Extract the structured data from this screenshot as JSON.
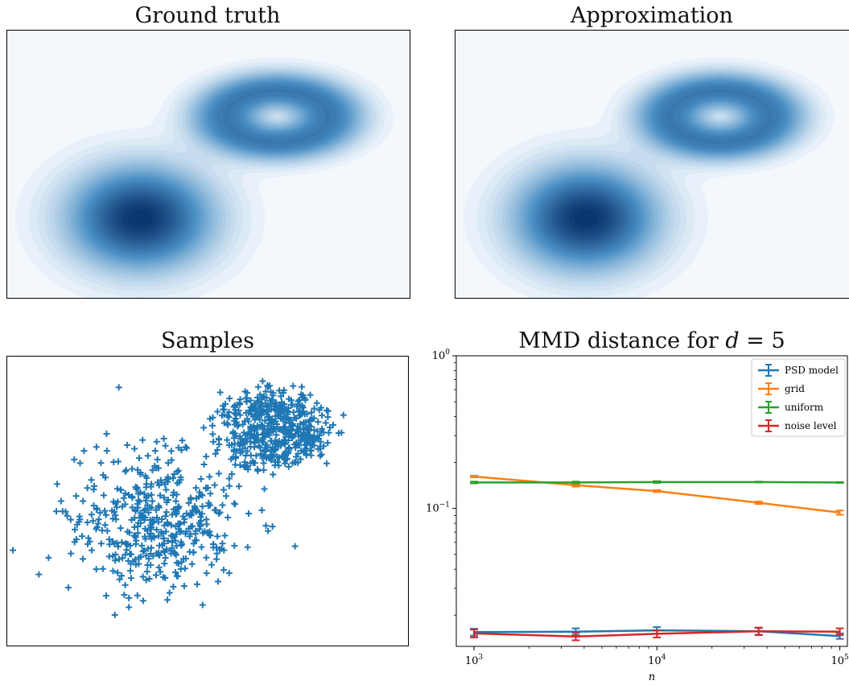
{
  "panels": {
    "ground_truth_title": "Ground truth",
    "approximation_title": "Approximation",
    "samples_title": "Samples",
    "mmd_title_prefix": "MMD distance for ",
    "mmd_title_var": "d",
    "mmd_title_eq": " = 5"
  },
  "colors": {
    "density_dark": "#08306b",
    "density_mid": "#4a8fc4",
    "density_light": "#f3f8fd",
    "samples": "#1f77b4",
    "psd_model": "#1f77b4",
    "grid": "#ff7f0e",
    "uniform": "#2ca02c",
    "noise_level": "#d62728"
  },
  "chart_data": [
    {
      "type": "heatmap",
      "title": "Ground truth",
      "description_components": "two-component Gaussian mixture density",
      "components": [
        {
          "center": [
            0.33,
            0.3
          ],
          "spread": [
            0.13,
            0.14
          ],
          "weight": 1.0
        },
        {
          "center": [
            0.67,
            0.68
          ],
          "spread": [
            0.17,
            0.13
          ],
          "weight": 0.65,
          "ring": true
        }
      ]
    },
    {
      "type": "heatmap",
      "title": "Approximation",
      "components": [
        {
          "center": [
            0.33,
            0.3
          ],
          "spread": [
            0.13,
            0.14
          ],
          "weight": 1.0
        },
        {
          "center": [
            0.67,
            0.68
          ],
          "spread": [
            0.17,
            0.13
          ],
          "weight": 0.65,
          "ring": true
        }
      ]
    },
    {
      "type": "scatter",
      "title": "Samples",
      "marker": "+",
      "n_points": 1000
    },
    {
      "type": "line",
      "title": "MMD distance for d = 5",
      "xlabel": "n",
      "ylabel": "",
      "xscale": "log",
      "yscale": "log",
      "xlim": [
        800,
        110000
      ],
      "ylim": [
        0.0125,
        1.0
      ],
      "xticks": [
        {
          "value": 1000,
          "base": "10",
          "exp": "3"
        },
        {
          "value": 10000,
          "base": "10",
          "exp": "4"
        },
        {
          "value": 100000,
          "base": "10",
          "exp": "5"
        }
      ],
      "yticks": [
        {
          "value": 1.0,
          "base": "10",
          "exp": "0"
        },
        {
          "value": 0.1,
          "base": "10",
          "exp": "−1"
        }
      ],
      "x": [
        1000,
        3600,
        10000,
        36000,
        100000
      ],
      "legend_position": "top-right",
      "series": [
        {
          "name": "PSD model",
          "color": "#1f77b4",
          "values": [
            0.0155,
            0.0156,
            0.0159,
            0.0157,
            0.0146
          ],
          "err": [
            0.0008,
            0.0008,
            0.0008,
            0.0008,
            0.0006
          ]
        },
        {
          "name": "grid",
          "color": "#ff7f0e",
          "values": [
            0.162,
            0.142,
            0.13,
            0.109,
            0.094
          ],
          "err": [
            0.002,
            0.003,
            0.002,
            0.002,
            0.003
          ]
        },
        {
          "name": "uniform",
          "color": "#2ca02c",
          "values": [
            0.148,
            0.148,
            0.149,
            0.149,
            0.148
          ],
          "err": [
            0.002,
            0.002,
            0.002,
            0.001,
            0.001
          ]
        },
        {
          "name": "noise level",
          "color": "#d62728",
          "values": [
            0.0152,
            0.0145,
            0.0151,
            0.0157,
            0.0156
          ],
          "err": [
            0.0009,
            0.0008,
            0.0008,
            0.0009,
            0.0008
          ]
        }
      ]
    }
  ]
}
